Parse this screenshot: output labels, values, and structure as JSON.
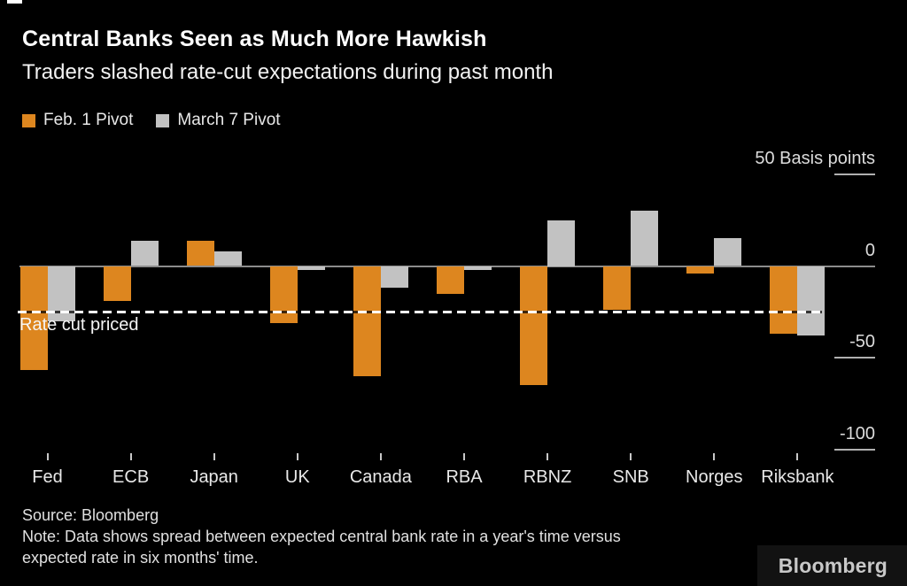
{
  "header": {
    "title": "Central Banks Seen as Much More Hawkish",
    "subtitle": "Traders slashed rate-cut expectations during past month"
  },
  "legend": [
    {
      "label": "Feb. 1 Pivot",
      "color": "#dd861f"
    },
    {
      "label": "March 7 Pivot",
      "color": "#c2c2c2"
    }
  ],
  "chart_data": {
    "type": "bar",
    "title": "Central Banks Seen as Much More Hawkish",
    "subtitle": "Traders slashed rate-cut expectations during past month",
    "categories": [
      "Fed",
      "ECB",
      "Japan",
      "UK",
      "Canada",
      "RBA",
      "RBNZ",
      "SNB",
      "Norges",
      "Riksbank"
    ],
    "series": [
      {
        "name": "Feb. 1 Pivot",
        "color": "#dd861f",
        "values": [
          -57,
          -19,
          14,
          -31,
          -60,
          -15,
          -65,
          -24,
          -4,
          -37
        ]
      },
      {
        "name": "March 7 Pivot",
        "color": "#c2c2c2",
        "values": [
          -30,
          14,
          8,
          -2,
          -12,
          -2,
          25,
          30,
          15,
          -38
        ]
      }
    ],
    "ylabel": "Basis points",
    "yticks": [
      50,
      0,
      -50,
      -100
    ],
    "ytick_labels": [
      "50 Basis points",
      "0",
      "-50",
      "-100"
    ],
    "ylim": [
      -110,
      55
    ],
    "grid": false,
    "legend_position": "top-left",
    "reference_line": {
      "value": -25,
      "label": "Rate cut priced",
      "style": "dashed",
      "color": "#ffffff"
    }
  },
  "footer": {
    "source": "Source: Bloomberg",
    "note_line1": "Note: Data shows spread between expected central bank rate in a year's time versus",
    "note_line2": "expected rate in six months' time.",
    "logo": "Bloomberg"
  },
  "colors": {
    "background": "#000000",
    "orange": "#dd861f",
    "gray": "#c2c2c2",
    "axis": "#8c8c8c",
    "text": "#e8e8e8",
    "reference": "#ffffff"
  }
}
